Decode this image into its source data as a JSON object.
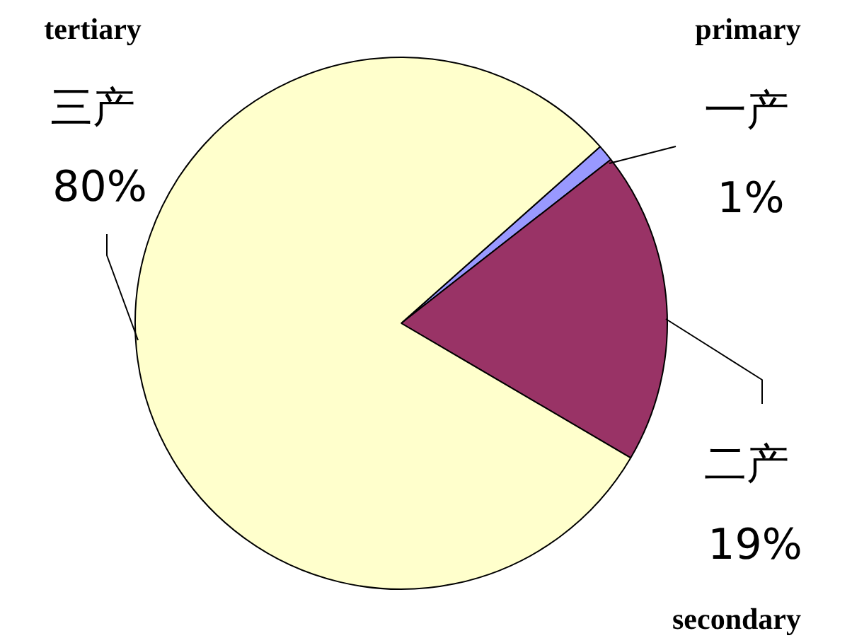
{
  "chart_data": {
    "type": "pie",
    "categories": [
      "一产",
      "二产",
      "三产"
    ],
    "values": [
      1,
      19,
      80
    ],
    "colors": [
      "#9999ff",
      "#993366",
      "#ffffcc"
    ],
    "value_labels": [
      "1%",
      "19%",
      "80%"
    ],
    "annotations": [
      "primary",
      "secondary",
      "tertiary"
    ]
  }
}
